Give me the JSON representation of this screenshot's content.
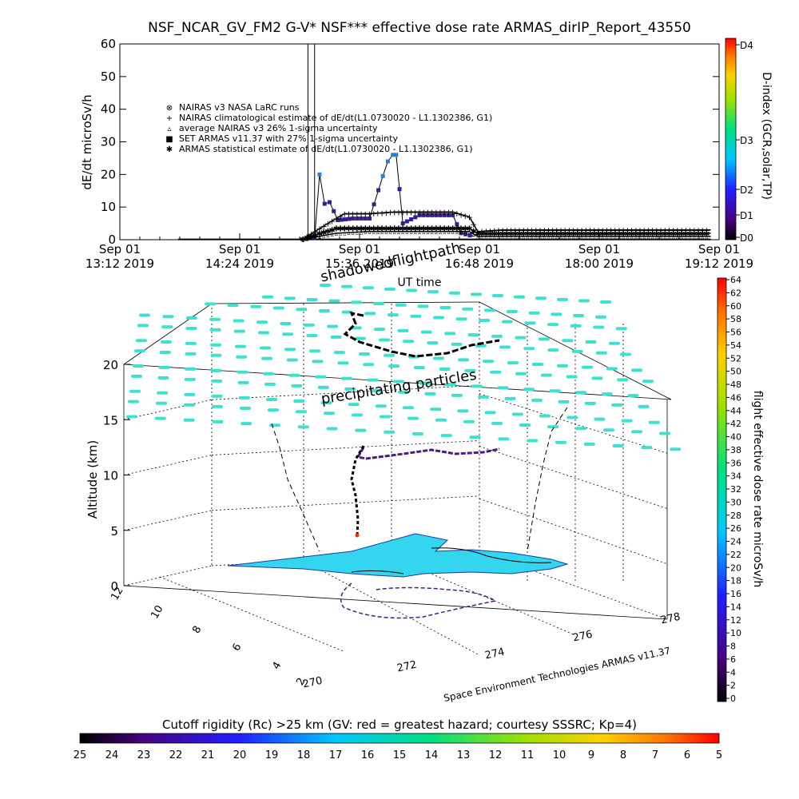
{
  "title": "NSF_NCAR_GV_FM2 G-V* NSF*** effective dose rate ARMAS_dirIP_Report_43550",
  "chart_data": [
    {
      "type": "line",
      "ylabel": "dE/dt microSv/h",
      "xlabel": "UT time",
      "ylim": [
        0,
        60
      ],
      "yticks": [
        0,
        10,
        20,
        30,
        40,
        50,
        60
      ],
      "xticks": [
        {
          "line1": "Sep 01",
          "line2": "13:12 2019"
        },
        {
          "line1": "Sep 01",
          "line2": "14:24 2019"
        },
        {
          "line1": "Sep 01",
          "line2": "15:36 2019"
        },
        {
          "line1": "Sep 01",
          "line2": "16:48 2019"
        },
        {
          "line1": "Sep 01",
          "line2": "18:00 2019"
        },
        {
          "line1": "Sep 01",
          "line2": "19:12 2019"
        }
      ],
      "xlim_minutes": [
        0,
        360
      ],
      "legend_placement": "upper-left",
      "legend": [
        {
          "symbol": "⊗",
          "label": "NAIRAS v3 NASA LaRC runs"
        },
        {
          "symbol": "+",
          "label": "NAIRAS climatological estimate of dE/dt(L1.0730020 - L1.1302386, G1)"
        },
        {
          "symbol": "▵",
          "label": "average NAIRAS v3 26% 1-sigma uncertainty"
        },
        {
          "symbol": "■",
          "label": "SET ARMAS v11.37 with 27% 1-sigma uncertainty"
        },
        {
          "symbol": "✱",
          "label": "ARMAS statistical estimate of dE/dt(L1.0730020 - L1.1302386, G1)"
        }
      ],
      "series": [
        {
          "name": "SET ARMAS v11.37 with 27% 1-sigma uncertainty",
          "x": [
            117,
            120,
            123,
            126,
            131,
            140,
            150,
            158,
            161,
            164,
            166,
            170,
            180,
            190,
            200,
            205,
            213
          ],
          "y": [
            0.5,
            20,
            11,
            11.5,
            6,
            6.5,
            6.5,
            19.5,
            24,
            26,
            26,
            5,
            7.5,
            7.5,
            7.5,
            2,
            1
          ]
        },
        {
          "name": "NAIRAS climatological estimate of dE/dt(L1.0730020 - L1.1302386, G1)",
          "x": [
            110,
            125,
            135,
            150,
            165,
            180,
            200,
            210,
            215,
            230,
            300,
            355
          ],
          "y": [
            0.2,
            5,
            8,
            8,
            8.5,
            8.5,
            8.5,
            7,
            2.5,
            3,
            3,
            3
          ]
        },
        {
          "name": "ARMAS statistical estimate of dE/dt(L1.0730020 - L1.1302386, G1)",
          "x": [
            110,
            130,
            150,
            170,
            190,
            210,
            215,
            230,
            300,
            355
          ],
          "y": [
            0.3,
            3.5,
            3.5,
            3.5,
            3.5,
            3.5,
            2,
            2,
            2,
            2
          ]
        },
        {
          "name": "average NAIRAS v3 26% 1-sigma uncertainty",
          "x": [
            110,
            130,
            150,
            170,
            190,
            210,
            215,
            300,
            355
          ],
          "y": [
            0.1,
            2,
            2.5,
            2.5,
            2.5,
            2.5,
            1,
            1,
            1
          ]
        }
      ],
      "vertical_marker_minutes": [
        113,
        117
      ],
      "colorbar": {
        "label": "D-index (GCR,solar,TP)",
        "ticks": [
          "D0",
          "D1",
          "D2",
          "D3",
          "D4"
        ]
      }
    },
    {
      "type": "scatter",
      "zlabel": "Altitude (km)",
      "zticks": [
        "0",
        "5",
        "10",
        "15",
        "20"
      ],
      "lat_ticks": [
        "12",
        "10",
        "8",
        "6",
        "4",
        "2"
      ],
      "lon_ticks": [
        "270",
        "272",
        "274",
        "276",
        "278"
      ],
      "annotations": [
        "shadowedflightpath",
        "UT time",
        "precipitating particles"
      ],
      "credit": "Space Environment Technologies ARMAS v11.37",
      "colorbar": {
        "label": "flight effective dose rate microSv/h",
        "ticks": [
          "0",
          "2",
          "4",
          "6",
          "8",
          "10",
          "12",
          "14",
          "16",
          "18",
          "20",
          "22",
          "24",
          "26",
          "28",
          "30",
          "32",
          "34",
          "36",
          "38",
          "40",
          "42",
          "44",
          "46",
          "48",
          "50",
          "52",
          "54",
          "56",
          "58",
          "60",
          "62",
          "64"
        ]
      }
    }
  ],
  "bottom_bar": {
    "label": "Cutoff rigidity (Rc) >25 km (GV: red = greatest hazard; courtesy SSSRC; Kp=4)",
    "ticks": [
      "25",
      "24",
      "23",
      "22",
      "21",
      "20",
      "19",
      "18",
      "17",
      "16",
      "15",
      "14",
      "13",
      "12",
      "11",
      "10",
      "9",
      "8",
      "7",
      "6",
      "5"
    ]
  },
  "colors": {
    "particles": "#40e0d0",
    "land": "#33d6ee",
    "flight_track": "#4b1c7a",
    "armas_marker": "#2040c8"
  }
}
